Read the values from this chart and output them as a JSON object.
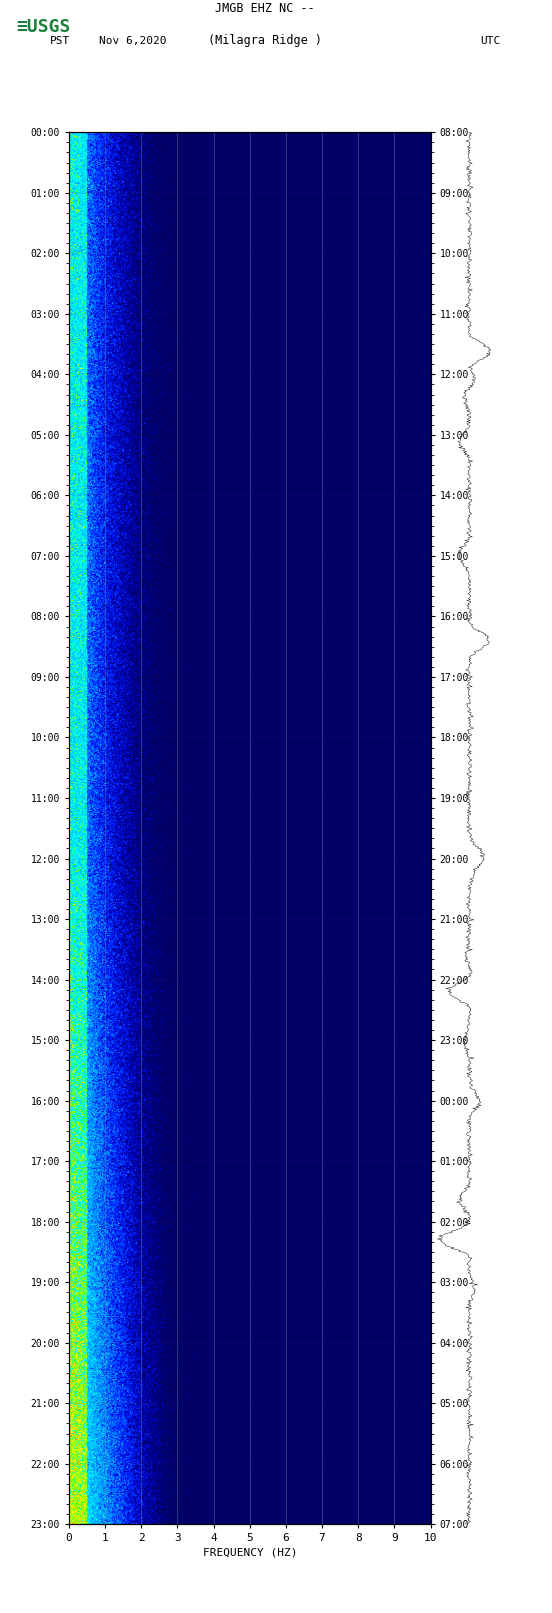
{
  "title_line1": "JMGB EHZ NC --",
  "title_line2": "(Milagra Ridge )",
  "left_label": "PST",
  "left_date": "Nov 6,2020",
  "right_label": "UTC",
  "xlabel": "FREQUENCY (HZ)",
  "freq_min": 0,
  "freq_max": 10,
  "freq_ticks": [
    0,
    1,
    2,
    3,
    4,
    5,
    6,
    7,
    8,
    9,
    10
  ],
  "pst_times": [
    "00:00",
    "01:00",
    "02:00",
    "03:00",
    "04:00",
    "05:00",
    "06:00",
    "07:00",
    "08:00",
    "09:00",
    "10:00",
    "11:00",
    "12:00",
    "13:00",
    "14:00",
    "15:00",
    "16:00",
    "17:00",
    "18:00",
    "19:00",
    "20:00",
    "21:00",
    "22:00",
    "23:00"
  ],
  "utc_times": [
    "08:00",
    "09:00",
    "10:00",
    "11:00",
    "12:00",
    "13:00",
    "14:00",
    "15:00",
    "16:00",
    "17:00",
    "18:00",
    "19:00",
    "20:00",
    "21:00",
    "22:00",
    "23:00",
    "00:00",
    "01:00",
    "02:00",
    "03:00",
    "04:00",
    "05:00",
    "06:00",
    "07:00"
  ],
  "background_color": "#ffffff",
  "spectrogram_bg": "#00008B",
  "usgs_green": "#1a7f3c",
  "n_freq_bins": 500,
  "n_time_bins": 1440,
  "grid_color": "#6688aa",
  "grid_alpha": 0.6,
  "waveform_color": "#111111",
  "cmap_colors": [
    [
      0.0,
      "#000066"
    ],
    [
      0.1,
      "#0000AA"
    ],
    [
      0.2,
      "#0022FF"
    ],
    [
      0.3,
      "#0088FF"
    ],
    [
      0.4,
      "#00CCFF"
    ],
    [
      0.5,
      "#00FFEE"
    ],
    [
      0.6,
      "#88FF00"
    ],
    [
      0.7,
      "#FFFF00"
    ],
    [
      0.8,
      "#FF8800"
    ],
    [
      0.9,
      "#FF2200"
    ],
    [
      1.0,
      "#FF0000"
    ]
  ]
}
